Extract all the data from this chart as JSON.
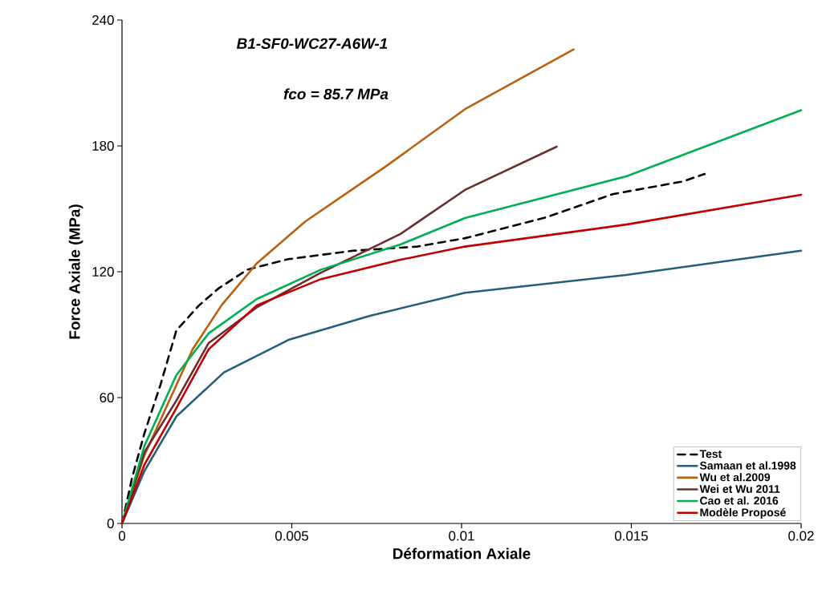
{
  "chart_data": {
    "type": "line",
    "title": "B1-SF0-WC27-A6W-1",
    "subtitle": "fco = 85.7  MPa",
    "xlabel": "Déformation Axiale",
    "ylabel": "Force Axiale  (MPa)",
    "xlim": [
      0,
      0.02
    ],
    "ylim": [
      0,
      240
    ],
    "xticks": [
      0,
      0.005,
      0.01,
      0.015,
      0.02
    ],
    "yticks": [
      0,
      60,
      120,
      180,
      240
    ],
    "legend": "bottom right",
    "series": [
      {
        "name": "Test",
        "color": "#000000",
        "line_style": "dashed",
        "x": [
          0,
          0.0003,
          0.00066,
          0.00113,
          0.0016,
          0.00227,
          0.00284,
          0.00369,
          0.0049,
          0.0068,
          0.0087,
          0.0101,
          0.0125,
          0.01445,
          0.0165,
          0.01716
        ],
        "values": [
          0,
          22,
          43,
          66,
          92,
          104,
          112,
          121,
          126,
          130,
          132,
          136,
          146,
          157,
          163,
          166.6
        ]
      },
      {
        "name": "Samaan et al.1998",
        "color": "#255e79",
        "x": [
          0,
          0.00066,
          0.0016,
          0.003,
          0.0049,
          0.0073,
          0.0101,
          0.01485,
          0.02
        ],
        "values": [
          0,
          25,
          51,
          72,
          87.5,
          99,
          110,
          118.5,
          130
        ]
      },
      {
        "name": "Wu et al.2009",
        "color": "#b8600f",
        "x": [
          0,
          0.00066,
          0.00208,
          0.00293,
          0.00397,
          0.0054,
          0.00775,
          0.0101,
          0.0133
        ],
        "values": [
          0,
          32.5,
          83,
          104,
          124,
          144,
          170,
          197.5,
          226
        ]
      },
      {
        "name": "Wei et Wu 2011",
        "color": "#6b2d2d",
        "x": [
          0,
          0.00066,
          0.0016,
          0.00255,
          0.00397,
          0.00586,
          0.0082,
          0.0101,
          0.0128
        ],
        "values": [
          0,
          34,
          58.5,
          86,
          103,
          119.6,
          138,
          159,
          179.6
        ]
      },
      {
        "name": "Cao et al. 2016",
        "color": "#00b050",
        "x": [
          0,
          0.00066,
          0.0016,
          0.00255,
          0.00397,
          0.00586,
          0.0082,
          0.0101,
          0.01485,
          0.02
        ],
        "values": [
          0,
          37,
          70.7,
          90.6,
          107,
          121,
          133,
          145.6,
          165.5,
          197
        ]
      },
      {
        "name": "Modèle Proposé",
        "color": "#c00000",
        "x": [
          0,
          0.00066,
          0.0016,
          0.00255,
          0.00397,
          0.00586,
          0.0082,
          0.0101,
          0.01485,
          0.02
        ],
        "values": [
          0,
          28,
          55,
          83,
          104,
          116.5,
          125.7,
          132,
          142.5,
          156.7
        ]
      }
    ]
  }
}
